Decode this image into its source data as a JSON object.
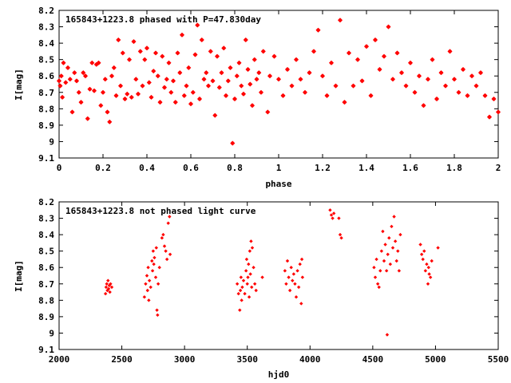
{
  "chart_data": [
    {
      "type": "scatter",
      "title": "165843+1223.8 phased with P=47.830day",
      "xlabel": "phase",
      "ylabel": "I[mag]",
      "xlim": [
        0,
        2
      ],
      "ylim": [
        8.2,
        9.1
      ],
      "y_inverted": true,
      "xticks": [
        0,
        0.2,
        0.4,
        0.6,
        0.8,
        1,
        1.2,
        1.4,
        1.6,
        1.8,
        2
      ],
      "xtick_labels": [
        "0",
        "0.2",
        "0.4",
        "0.6",
        "0.8",
        "1",
        "1.2",
        "1.4",
        "1.6",
        "1.8",
        "2"
      ],
      "yticks": [
        8.2,
        8.3,
        8.4,
        8.5,
        8.6,
        8.7,
        8.8,
        8.9,
        9,
        9.1
      ],
      "ytick_labels": [
        "8.2",
        "8.3",
        "8.4",
        "8.5",
        "8.6",
        "8.7",
        "8.8",
        "8.9",
        "9",
        "9.1"
      ],
      "grid": false,
      "marker": "star",
      "color": "#ff0000",
      "points": [
        [
          0.0,
          8.63
        ],
        [
          0.005,
          8.66
        ],
        [
          0.01,
          8.6
        ],
        [
          0.015,
          8.73
        ],
        [
          0.02,
          8.52
        ],
        [
          0.03,
          8.64
        ],
        [
          0.04,
          8.55
        ],
        [
          0.05,
          8.62
        ],
        [
          0.06,
          8.82
        ],
        [
          0.07,
          8.58
        ],
        [
          0.08,
          8.63
        ],
        [
          0.09,
          8.7
        ],
        [
          0.1,
          8.76
        ],
        [
          0.11,
          8.58
        ],
        [
          0.12,
          8.6
        ],
        [
          0.13,
          8.86
        ],
        [
          0.14,
          8.68
        ],
        [
          0.15,
          8.52
        ],
        [
          0.16,
          8.69
        ],
        [
          0.17,
          8.53
        ],
        [
          0.18,
          8.52
        ],
        [
          0.19,
          8.78
        ],
        [
          0.2,
          8.7
        ],
        [
          0.21,
          8.62
        ],
        [
          0.22,
          8.82
        ],
        [
          0.23,
          8.88
        ],
        [
          0.24,
          8.6
        ],
        [
          0.25,
          8.55
        ],
        [
          0.26,
          8.72
        ],
        [
          0.27,
          8.38
        ],
        [
          0.28,
          8.66
        ],
        [
          0.29,
          8.46
        ],
        [
          0.3,
          8.74
        ],
        [
          0.31,
          8.71
        ],
        [
          0.32,
          8.5
        ],
        [
          0.33,
          8.73
        ],
        [
          0.34,
          8.39
        ],
        [
          0.35,
          8.62
        ],
        [
          0.36,
          8.71
        ],
        [
          0.37,
          8.45
        ],
        [
          0.38,
          8.66
        ],
        [
          0.39,
          8.5
        ],
        [
          0.4,
          8.43
        ],
        [
          0.41,
          8.64
        ],
        [
          0.42,
          8.73
        ],
        [
          0.43,
          8.57
        ],
        [
          0.44,
          8.46
        ],
        [
          0.45,
          8.6
        ],
        [
          0.46,
          8.76
        ],
        [
          0.47,
          8.48
        ],
        [
          0.48,
          8.67
        ],
        [
          0.49,
          8.62
        ],
        [
          0.5,
          8.52
        ],
        [
          0.51,
          8.7
        ],
        [
          0.52,
          8.63
        ],
        [
          0.53,
          8.76
        ],
        [
          0.54,
          8.46
        ],
        [
          0.55,
          8.58
        ],
        [
          0.56,
          8.35
        ],
        [
          0.57,
          8.72
        ],
        [
          0.58,
          8.66
        ],
        [
          0.59,
          8.55
        ],
        [
          0.6,
          8.77
        ],
        [
          0.61,
          8.7
        ],
        [
          0.62,
          8.47
        ],
        [
          0.63,
          8.29
        ],
        [
          0.64,
          8.74
        ],
        [
          0.65,
          8.38
        ],
        [
          0.66,
          8.62
        ],
        [
          0.67,
          8.58
        ],
        [
          0.68,
          8.66
        ],
        [
          0.69,
          8.45
        ],
        [
          0.7,
          8.63
        ],
        [
          0.71,
          8.84
        ],
        [
          0.72,
          8.48
        ],
        [
          0.73,
          8.67
        ],
        [
          0.74,
          8.58
        ],
        [
          0.75,
          8.43
        ],
        [
          0.76,
          8.72
        ],
        [
          0.77,
          8.63
        ],
        [
          0.78,
          8.55
        ],
        [
          0.79,
          9.01
        ],
        [
          0.8,
          8.74
        ],
        [
          0.81,
          8.6
        ],
        [
          0.82,
          8.52
        ],
        [
          0.83,
          8.66
        ],
        [
          0.84,
          8.71
        ],
        [
          0.85,
          8.38
        ],
        [
          0.86,
          8.56
        ],
        [
          0.87,
          8.65
        ],
        [
          0.88,
          8.78
        ],
        [
          0.89,
          8.5
        ],
        [
          0.9,
          8.62
        ],
        [
          0.91,
          8.58
        ],
        [
          0.92,
          8.7
        ],
        [
          0.93,
          8.45
        ],
        [
          0.95,
          8.82
        ],
        [
          0.96,
          8.6
        ],
        [
          0.98,
          8.48
        ],
        [
          1.0,
          8.62
        ],
        [
          1.02,
          8.72
        ],
        [
          1.04,
          8.56
        ],
        [
          1.06,
          8.66
        ],
        [
          1.08,
          8.5
        ],
        [
          1.1,
          8.62
        ],
        [
          1.12,
          8.7
        ],
        [
          1.14,
          8.58
        ],
        [
          1.16,
          8.45
        ],
        [
          1.18,
          8.32
        ],
        [
          1.2,
          8.6
        ],
        [
          1.22,
          8.72
        ],
        [
          1.24,
          8.52
        ],
        [
          1.26,
          8.66
        ],
        [
          1.28,
          8.26
        ],
        [
          1.3,
          8.76
        ],
        [
          1.32,
          8.46
        ],
        [
          1.34,
          8.66
        ],
        [
          1.36,
          8.5
        ],
        [
          1.38,
          8.63
        ],
        [
          1.4,
          8.42
        ],
        [
          1.42,
          8.72
        ],
        [
          1.44,
          8.38
        ],
        [
          1.46,
          8.56
        ],
        [
          1.48,
          8.48
        ],
        [
          1.5,
          8.3
        ],
        [
          1.52,
          8.62
        ],
        [
          1.54,
          8.46
        ],
        [
          1.56,
          8.58
        ],
        [
          1.58,
          8.66
        ],
        [
          1.6,
          8.52
        ],
        [
          1.62,
          8.7
        ],
        [
          1.64,
          8.6
        ],
        [
          1.66,
          8.78
        ],
        [
          1.68,
          8.62
        ],
        [
          1.7,
          8.5
        ],
        [
          1.72,
          8.74
        ],
        [
          1.74,
          8.58
        ],
        [
          1.76,
          8.66
        ],
        [
          1.78,
          8.45
        ],
        [
          1.8,
          8.62
        ],
        [
          1.82,
          8.7
        ],
        [
          1.84,
          8.56
        ],
        [
          1.86,
          8.72
        ],
        [
          1.88,
          8.6
        ],
        [
          1.9,
          8.66
        ],
        [
          1.92,
          8.58
        ],
        [
          1.94,
          8.72
        ],
        [
          1.96,
          8.85
        ],
        [
          1.98,
          8.74
        ],
        [
          2.0,
          8.82
        ]
      ]
    },
    {
      "type": "scatter",
      "title": "165843+1223.8 not phased light curve",
      "xlabel": "hjd0",
      "ylabel": "I[mag]",
      "xlim": [
        2000,
        5500
      ],
      "ylim": [
        8.2,
        9.1
      ],
      "y_inverted": true,
      "xticks": [
        2000,
        2500,
        3000,
        3500,
        4000,
        4500,
        5000,
        5500
      ],
      "xtick_labels": [
        "2000",
        "2500",
        "3000",
        "3500",
        "4000",
        "4500",
        "5000",
        "5500"
      ],
      "yticks": [
        8.2,
        8.3,
        8.4,
        8.5,
        8.6,
        8.7,
        8.8,
        8.9,
        9,
        9.1
      ],
      "ytick_labels": [
        "8.2",
        "8.3",
        "8.4",
        "8.5",
        "8.6",
        "8.7",
        "8.8",
        "8.9",
        "9",
        "9.1"
      ],
      "grid": false,
      "marker": "diamond",
      "color": "#ff0000",
      "points": [
        [
          2370,
          8.76
        ],
        [
          2375,
          8.72
        ],
        [
          2380,
          8.7
        ],
        [
          2385,
          8.74
        ],
        [
          2390,
          8.68
        ],
        [
          2395,
          8.73
        ],
        [
          2400,
          8.71
        ],
        [
          2405,
          8.75
        ],
        [
          2410,
          8.7
        ],
        [
          2420,
          8.72
        ],
        [
          2680,
          8.78
        ],
        [
          2690,
          8.7
        ],
        [
          2700,
          8.65
        ],
        [
          2705,
          8.74
        ],
        [
          2710,
          8.6
        ],
        [
          2715,
          8.8
        ],
        [
          2720,
          8.68
        ],
        [
          2730,
          8.72
        ],
        [
          2740,
          8.56
        ],
        [
          2745,
          8.62
        ],
        [
          2750,
          8.5
        ],
        [
          2755,
          8.58
        ],
        [
          2760,
          8.54
        ],
        [
          2770,
          8.66
        ],
        [
          2775,
          8.48
        ],
        [
          2780,
          8.86
        ],
        [
          2785,
          8.89
        ],
        [
          2790,
          8.7
        ],
        [
          2800,
          8.6
        ],
        [
          2820,
          8.42
        ],
        [
          2830,
          8.4
        ],
        [
          2840,
          8.47
        ],
        [
          2850,
          8.5
        ],
        [
          2860,
          8.55
        ],
        [
          2870,
          8.33
        ],
        [
          2880,
          8.29
        ],
        [
          2885,
          8.52
        ],
        [
          3420,
          8.7
        ],
        [
          3430,
          8.76
        ],
        [
          3440,
          8.86
        ],
        [
          3445,
          8.74
        ],
        [
          3450,
          8.66
        ],
        [
          3455,
          8.8
        ],
        [
          3460,
          8.72
        ],
        [
          3470,
          8.68
        ],
        [
          3480,
          8.76
        ],
        [
          3490,
          8.62
        ],
        [
          3495,
          8.55
        ],
        [
          3500,
          8.7
        ],
        [
          3505,
          8.66
        ],
        [
          3510,
          8.58
        ],
        [
          3515,
          8.78
        ],
        [
          3520,
          8.5
        ],
        [
          3525,
          8.64
        ],
        [
          3530,
          8.44
        ],
        [
          3535,
          8.72
        ],
        [
          3540,
          8.48
        ],
        [
          3550,
          8.6
        ],
        [
          3560,
          8.7
        ],
        [
          3570,
          8.74
        ],
        [
          3620,
          8.66
        ],
        [
          3800,
          8.62
        ],
        [
          3810,
          8.7
        ],
        [
          3820,
          8.56
        ],
        [
          3830,
          8.66
        ],
        [
          3840,
          8.74
        ],
        [
          3850,
          8.6
        ],
        [
          3860,
          8.68
        ],
        [
          3870,
          8.64
        ],
        [
          3880,
          8.7
        ],
        [
          3890,
          8.78
        ],
        [
          3900,
          8.62
        ],
        [
          3910,
          8.72
        ],
        [
          3920,
          8.58
        ],
        [
          3930,
          8.82
        ],
        [
          3935,
          8.55
        ],
        [
          3940,
          8.66
        ],
        [
          4160,
          8.25
        ],
        [
          4170,
          8.28
        ],
        [
          4180,
          8.3
        ],
        [
          4190,
          8.27
        ],
        [
          4230,
          8.3
        ],
        [
          4240,
          8.4
        ],
        [
          4250,
          8.42
        ],
        [
          4510,
          8.6
        ],
        [
          4520,
          8.66
        ],
        [
          4530,
          8.55
        ],
        [
          4540,
          8.7
        ],
        [
          4550,
          8.72
        ],
        [
          4560,
          8.62
        ],
        [
          4570,
          8.5
        ],
        [
          4580,
          8.38
        ],
        [
          4590,
          8.56
        ],
        [
          4600,
          8.46
        ],
        [
          4610,
          8.62
        ],
        [
          4615,
          9.01
        ],
        [
          4620,
          8.52
        ],
        [
          4630,
          8.42
        ],
        [
          4640,
          8.58
        ],
        [
          4650,
          8.35
        ],
        [
          4660,
          8.48
        ],
        [
          4670,
          8.29
        ],
        [
          4680,
          8.44
        ],
        [
          4690,
          8.56
        ],
        [
          4700,
          8.5
        ],
        [
          4710,
          8.62
        ],
        [
          4720,
          8.4
        ],
        [
          4880,
          8.46
        ],
        [
          4890,
          8.52
        ],
        [
          4900,
          8.55
        ],
        [
          4910,
          8.5
        ],
        [
          4920,
          8.62
        ],
        [
          4930,
          8.58
        ],
        [
          4940,
          8.7
        ],
        [
          4945,
          8.6
        ],
        [
          4950,
          8.64
        ],
        [
          4960,
          8.66
        ],
        [
          4970,
          8.56
        ],
        [
          5020,
          8.48
        ]
      ]
    }
  ]
}
